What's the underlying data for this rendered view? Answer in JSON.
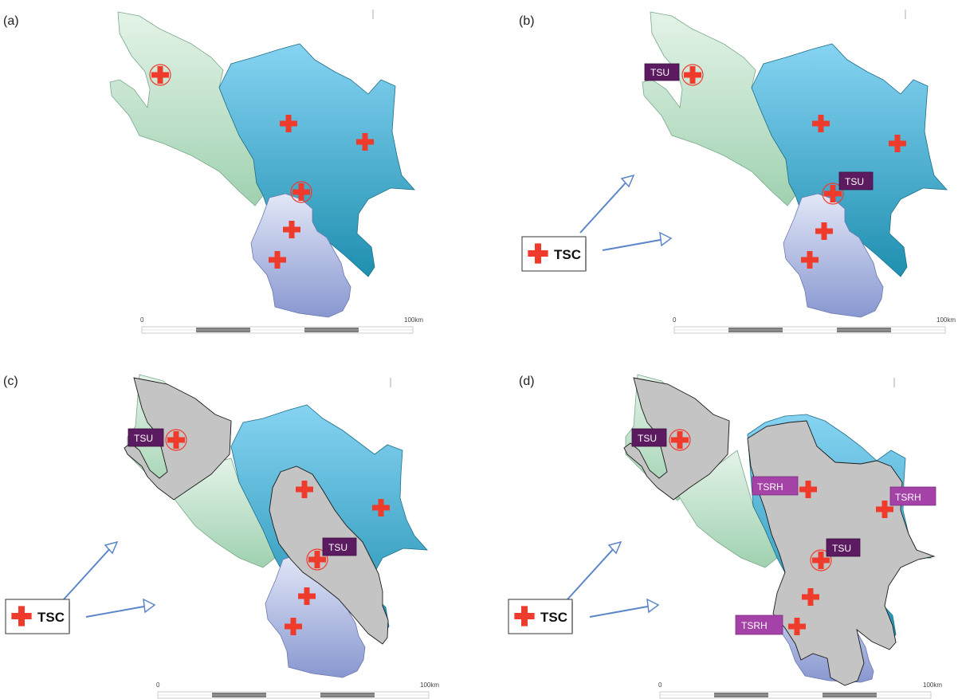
{
  "panels": [
    {
      "id": "a",
      "label": "(a)"
    },
    {
      "id": "b",
      "label": "(b)"
    },
    {
      "id": "c",
      "label": "(c)"
    },
    {
      "id": "d",
      "label": "(d)"
    }
  ],
  "scale_bar": {
    "start_label": "0",
    "end_label": "100km"
  },
  "legend": {
    "tsc_label": "TSC",
    "icon": "red-cross-icon"
  },
  "unit_tags": {
    "tsu": "TSU",
    "tsrh": "TSRH"
  },
  "colors": {
    "green_region": "#cfe6d6",
    "blue_region_top": "#86d3f2",
    "blue_region_bottom": "#1f8fb0",
    "lavender_region_top": "#dfe4f6",
    "lavender_region_bottom": "#8d9bd2",
    "grey_region": "#c4c4c4",
    "cross": "#ef3b2c",
    "tsu_tag": "#5c1a61",
    "tsrh_tag": "#a442a8",
    "arrow": "#5b86c9"
  }
}
